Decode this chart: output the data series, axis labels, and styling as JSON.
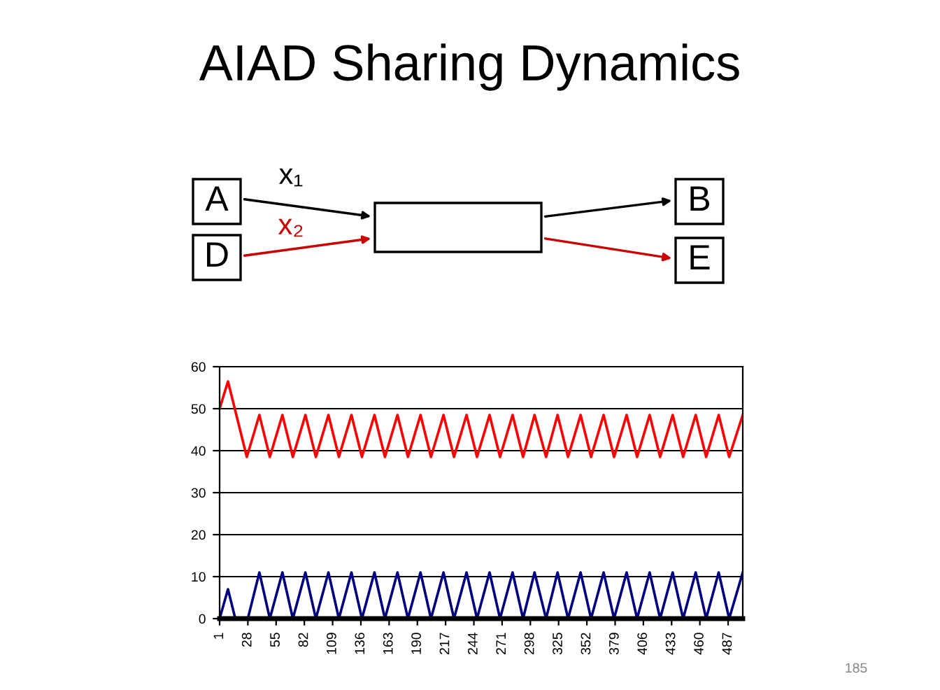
{
  "chart_data": {
    "type": "line",
    "title": "AIAD Sharing Dynamics",
    "annotations": [
      "A",
      "D",
      "B",
      "E",
      "x₁",
      "x₂",
      "185"
    ],
    "series": [
      {
        "color": "#ff0000",
        "x": [
          1,
          9,
          27,
          39,
          49,
          61,
          71,
          83,
          93,
          105,
          115,
          127,
          137,
          149,
          159,
          171,
          181,
          193,
          203,
          215,
          225,
          237,
          247,
          259,
          269,
          281,
          291,
          302,
          313,
          324,
          334,
          346,
          356,
          368,
          378,
          390,
          400,
          412,
          422,
          434,
          444,
          456,
          466,
          478,
          488,
          501
        ],
        "values": [
          50,
          56.5,
          38.5,
          48.5,
          38.5,
          48.5,
          38.5,
          48.5,
          38.5,
          48.5,
          38.5,
          48.5,
          38.5,
          48.5,
          38.5,
          48.5,
          38.5,
          48.5,
          38.5,
          48.5,
          38.5,
          48.5,
          38.5,
          48.5,
          38.5,
          48.5,
          38.5,
          48.5,
          38.5,
          48.5,
          38.5,
          48.5,
          38.5,
          48.5,
          38.5,
          48.5,
          38.5,
          48.5,
          38.5,
          48.5,
          38.5,
          48.5,
          38.5,
          48.5,
          38.5,
          48.5
        ]
      },
      {
        "color": "#000080",
        "x": [
          1,
          9,
          16,
          28,
          39,
          49,
          61,
          71,
          83,
          93,
          105,
          115,
          127,
          137,
          149,
          159,
          171,
          181,
          193,
          203,
          215,
          225,
          237,
          247,
          259,
          269,
          281,
          291,
          302,
          313,
          324,
          334,
          346,
          356,
          368,
          378,
          390,
          400,
          412,
          422,
          434,
          444,
          456,
          466,
          478,
          488,
          501
        ],
        "values": [
          0,
          7,
          0,
          0,
          11,
          0,
          11,
          0,
          11,
          0,
          11,
          0,
          11,
          0,
          11,
          0,
          11,
          0,
          11,
          0,
          11,
          0,
          11,
          0,
          11,
          0,
          11,
          0,
          11,
          0,
          11,
          0,
          11,
          0,
          11,
          0,
          11,
          0,
          11,
          0,
          11,
          0,
          11,
          0,
          11,
          0,
          11
        ]
      }
    ],
    "xlim": [
      1,
      501
    ],
    "xticks": [
      1,
      28,
      55,
      82,
      109,
      136,
      163,
      190,
      217,
      244,
      271,
      298,
      325,
      352,
      379,
      406,
      433,
      460,
      487
    ],
    "ylim": [
      0,
      60
    ],
    "yticks": [
      0,
      10,
      20,
      30,
      40,
      50,
      60
    ],
    "grid": "y",
    "marker": "none",
    "line_style": "solid"
  }
}
